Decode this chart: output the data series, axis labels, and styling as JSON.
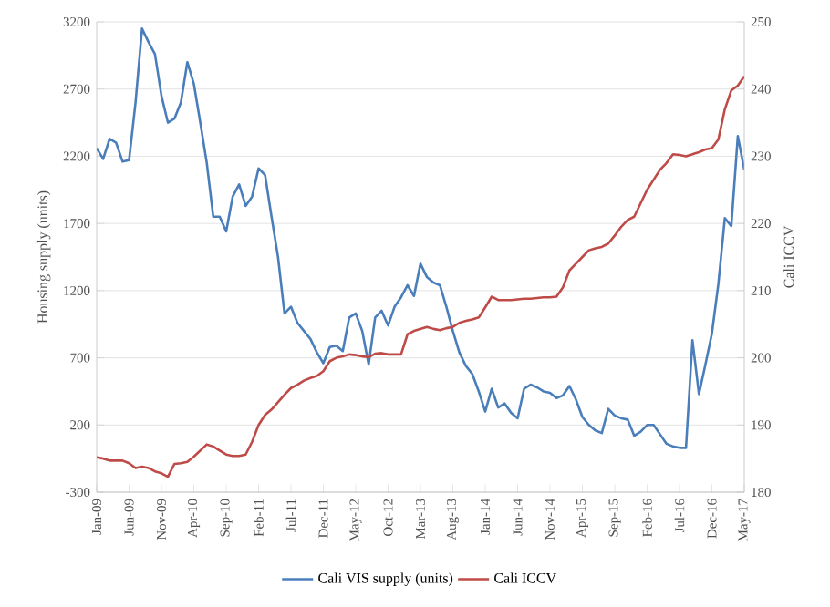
{
  "chart_data": {
    "type": "line",
    "ylabel": "Housing supply (units)",
    "y2label": "Cali ICCV",
    "categories": [
      "Jan-09",
      null,
      null,
      null,
      null,
      "Jun-09",
      null,
      null,
      null,
      null,
      "Nov-09",
      null,
      null,
      null,
      null,
      "Apr-10",
      null,
      null,
      null,
      null,
      "Sep-10",
      null,
      null,
      null,
      null,
      "Feb-11",
      null,
      null,
      null,
      null,
      "Jul-11",
      null,
      null,
      null,
      null,
      "Dec-11",
      null,
      null,
      null,
      null,
      "May-12",
      null,
      null,
      null,
      null,
      "Oct-12",
      null,
      null,
      null,
      null,
      "Mar-13",
      null,
      null,
      null,
      null,
      "Aug-13",
      null,
      null,
      null,
      null,
      "Jan-14",
      null,
      null,
      null,
      null,
      "Jun-14",
      null,
      null,
      null,
      null,
      "Nov-14",
      null,
      null,
      null,
      null,
      "Apr-15",
      null,
      null,
      null,
      null,
      "Sep-15",
      null,
      null,
      null,
      null,
      "Feb-16",
      null,
      null,
      null,
      null,
      "Jul-16",
      null,
      null,
      null,
      null,
      "Dec-16",
      null,
      null,
      null,
      null,
      "May-17"
    ],
    "series": [
      {
        "name": "Cali VIS supply (units)",
        "color": "#4a7ebb",
        "values": [
          2260,
          2180,
          2330,
          2300,
          2160,
          2170,
          2600,
          3150,
          3050,
          2960,
          2650,
          2450,
          2480,
          2600,
          2900,
          2740,
          2450,
          2150,
          1750,
          1750,
          1640,
          1900,
          1990,
          1830,
          1900,
          2110,
          2060,
          1750,
          1450,
          1030,
          1080,
          960,
          900,
          840,
          740,
          660,
          780,
          790,
          750,
          1000,
          1030,
          900,
          650,
          1000,
          1050,
          940,
          1080,
          1150,
          1240,
          1160,
          1400,
          1300,
          1260,
          1240,
          1080,
          900,
          740,
          640,
          580,
          450,
          300,
          470,
          330,
          360,
          290,
          250,
          470,
          500,
          480,
          450,
          440,
          400,
          420,
          490,
          390,
          260,
          200,
          160,
          140,
          320,
          270,
          250,
          240,
          120,
          150,
          200,
          200,
          130,
          60,
          40,
          30,
          30,
          830,
          430,
          650,
          880,
          1250,
          1740,
          1680,
          2350,
          2100
        ]
      },
      {
        "name": "Cali ICCV",
        "color": "#be4b48",
        "axis": "y2",
        "values": [
          185.2,
          185.0,
          184.7,
          184.7,
          184.7,
          184.3,
          183.6,
          183.8,
          183.6,
          183.1,
          182.8,
          182.3,
          184.2,
          184.3,
          184.5,
          185.3,
          186.2,
          187.1,
          186.8,
          186.2,
          185.6,
          185.4,
          185.4,
          185.6,
          187.5,
          190.0,
          191.5,
          192.3,
          193.4,
          194.5,
          195.5,
          196.0,
          196.6,
          197.0,
          197.3,
          198.0,
          199.5,
          200.0,
          200.2,
          200.5,
          200.4,
          200.2,
          200.1,
          200.6,
          200.7,
          200.5,
          200.5,
          200.5,
          203.5,
          204.0,
          204.3,
          204.6,
          204.3,
          204.1,
          204.4,
          204.6,
          205.2,
          205.5,
          205.7,
          206.0,
          207.5,
          209.1,
          208.6,
          208.6,
          208.6,
          208.7,
          208.8,
          208.8,
          208.9,
          209.0,
          209.0,
          209.1,
          210.5,
          213.0,
          214.0,
          215.0,
          216.0,
          216.3,
          216.5,
          217.0,
          218.2,
          219.5,
          220.5,
          221.0,
          223.0,
          225.0,
          226.5,
          228.0,
          229.0,
          230.3,
          230.2,
          230.0,
          230.3,
          230.6,
          231.0,
          231.2,
          232.5,
          237.0,
          239.8,
          240.5,
          241.9
        ]
      }
    ],
    "ylim": [
      -300,
      3200
    ],
    "yticks": [
      -300,
      200,
      700,
      1200,
      1700,
      2200,
      2700,
      3200
    ],
    "y2lim": [
      180,
      250
    ],
    "y2ticks": [
      180,
      190,
      200,
      210,
      220,
      230,
      240,
      250
    ],
    "grid": "y",
    "legend": "bottom"
  }
}
